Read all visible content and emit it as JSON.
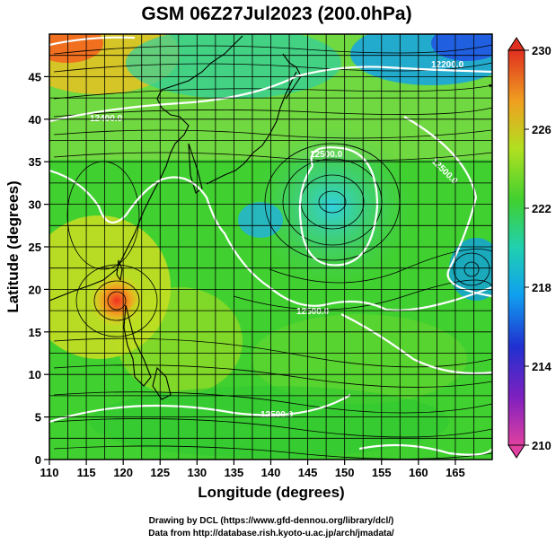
{
  "title": "GSM 06Z27Jul2023 (200.0hPa)",
  "map": {
    "x_axis_label": "Longitude (degrees)",
    "y_axis_label": "Latitude  (degrees)",
    "lon_range": [
      110,
      170
    ],
    "lat_range": [
      0,
      50
    ],
    "lon_ticks": [
      "110",
      "115",
      "120",
      "125",
      "130",
      "135",
      "140",
      "145",
      "150",
      "155",
      "160",
      "165"
    ],
    "lat_ticks": [
      "0",
      "5",
      "10",
      "15",
      "20",
      "25",
      "30",
      "35",
      "40",
      "45"
    ],
    "grid": true,
    "colormap_note": "rainbow shading of temperature",
    "contour_labels": [
      "12200.0",
      "12400.0",
      "12500.0",
      "12500.0",
      "12500.0",
      "12500.0"
    ]
  },
  "colorbar": {
    "min": 210,
    "max": 230,
    "ticks": [
      "230",
      "226",
      "222",
      "218",
      "214",
      "210"
    ],
    "colors": [
      "#e8409a",
      "#2020c0",
      "#10a0f0",
      "#20d0d0",
      "#30c030",
      "#90e020",
      "#f0d020",
      "#f08020",
      "#e03020"
    ]
  },
  "credits": {
    "line1": "Drawing by DCL (https://www.gfd-dennou.org/library/dcl/)",
    "line2": "Data from http://database.rish.kyoto-u.ac.jp/arch/jmadata/"
  }
}
